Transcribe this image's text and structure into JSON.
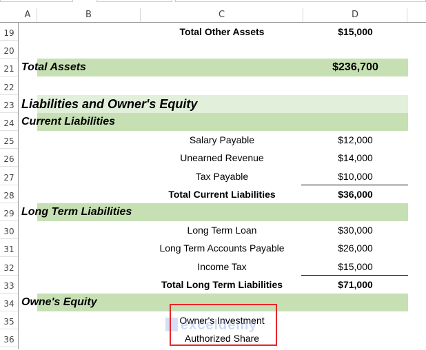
{
  "columns": [
    "A",
    "B",
    "C",
    "D"
  ],
  "colors": {
    "section_fill": "#c6e0b4",
    "title_fill": "#e2efda",
    "highlight_border": "#e8262b"
  },
  "watermark": "exceldemy",
  "rows": [
    {
      "num": "19",
      "c": "Total Other Assets",
      "d": "$15,000",
      "style": "total"
    },
    {
      "num": "20"
    },
    {
      "num": "21",
      "b": "Total Assets",
      "d": "$236,700",
      "style": "section"
    },
    {
      "num": "22"
    },
    {
      "num": "23",
      "b": "Liabilities and Owner's Equity",
      "style": "title"
    },
    {
      "num": "24",
      "b": "Current Liabilities",
      "style": "section"
    },
    {
      "num": "25",
      "c": "Salary Payable",
      "d": "$12,000"
    },
    {
      "num": "26",
      "c": "Unearned Revenue",
      "d": "$14,000"
    },
    {
      "num": "27",
      "c": "Tax Payable",
      "d": "$10,000",
      "underline": true
    },
    {
      "num": "28",
      "c": "Total Current Liabilities",
      "d": "$36,000",
      "style": "total"
    },
    {
      "num": "29",
      "b": "Long Term  Liabilities",
      "style": "section"
    },
    {
      "num": "30",
      "c": "Long Term Loan",
      "d": "$30,000"
    },
    {
      "num": "31",
      "c": "Long Term Accounts Payable",
      "d": "$26,000"
    },
    {
      "num": "32",
      "c": "Income Tax",
      "d": "$15,000",
      "underline": true
    },
    {
      "num": "33",
      "c": "Total Long Term Liabilities",
      "d": "$71,000",
      "style": "total"
    },
    {
      "num": "34",
      "b": "Owne's Equity",
      "style": "section"
    },
    {
      "num": "35",
      "c": "Owner's Investment"
    },
    {
      "num": "36",
      "c": "Authorized Share"
    }
  ]
}
